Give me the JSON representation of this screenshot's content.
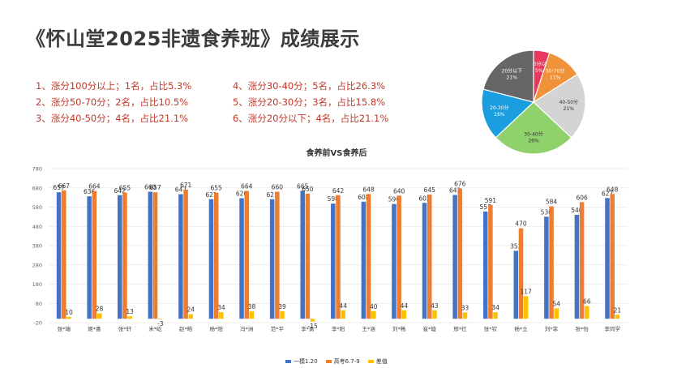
{
  "page": {
    "title": "《怀山堂2025非遗食养班》成绩展示",
    "stats_left": [
      "1、涨分100分以上；1名，占比5.3%",
      "2、涨分50-70分；2名，占比10.5%",
      "3、涨分40-50分；4名，占比21.1%"
    ],
    "stats_right": [
      "4、涨分30-40分；5名，占比26.3%",
      "5、涨分20-30分；3名，占比15.8%",
      "6、涨分20分以下；4名，占比21.1%"
    ]
  },
  "chart_data": [
    {
      "type": "pie",
      "slices": [
        {
          "label": "100分以上",
          "value": 5,
          "pct_label": "5%",
          "color": "#e8385e"
        },
        {
          "label": "50-70分",
          "value": 11,
          "pct_label": "11%",
          "color": "#f0923a"
        },
        {
          "label": "40-50分",
          "value": 21,
          "pct_label": "21%",
          "color": "#d4d4d4"
        },
        {
          "label": "30-40分",
          "value": 26,
          "pct_label": "26%",
          "color": "#8fd16a"
        },
        {
          "label": "20-30分",
          "value": 16,
          "pct_label": "16%",
          "color": "#1a9ee0"
        },
        {
          "label": "20分以下",
          "value": 21,
          "pct_label": "21%",
          "color": "#666666"
        }
      ]
    },
    {
      "type": "bar",
      "title": "食养前VS食养后",
      "categories": [
        "张*瑞",
        "姬*喜",
        "张*轩",
        "米*屹",
        "赵*皓",
        "杨*阳",
        "冯*洲",
        "范*平",
        "李*勇",
        "李*阳",
        "王*涵",
        "刘*畅",
        "崔*璇",
        "邢*社",
        "张*钦",
        "杨*立",
        "刘*菲",
        "张*怡",
        "李同学"
      ],
      "series": [
        {
          "name": "一模1.20",
          "color": "#4472c4",
          "values": [
            657,
            636,
            642,
            660,
            647,
            621,
            626,
            621,
            665,
            598,
            608,
            596,
            602,
            643,
            557,
            353,
            530,
            540,
            627
          ]
        },
        {
          "name": "高考6.7-9",
          "color": "#ed7d31",
          "values": [
            667,
            664,
            655,
            657,
            671,
            655,
            664,
            660,
            650,
            642,
            648,
            640,
            645,
            676,
            591,
            470,
            584,
            606,
            648
          ]
        },
        {
          "name": "差值",
          "color": "#ffc000",
          "values": [
            10,
            28,
            13,
            -3,
            24,
            34,
            38,
            39,
            -15,
            44,
            40,
            44,
            43,
            33,
            34,
            117,
            54,
            66,
            21
          ]
        }
      ],
      "yticks": [
        "780",
        "680",
        "580",
        "480",
        "380",
        "280",
        "180",
        "80",
        "-20"
      ],
      "ylim": [
        -20,
        780
      ],
      "grid": true,
      "legend_position": "bottom"
    }
  ]
}
